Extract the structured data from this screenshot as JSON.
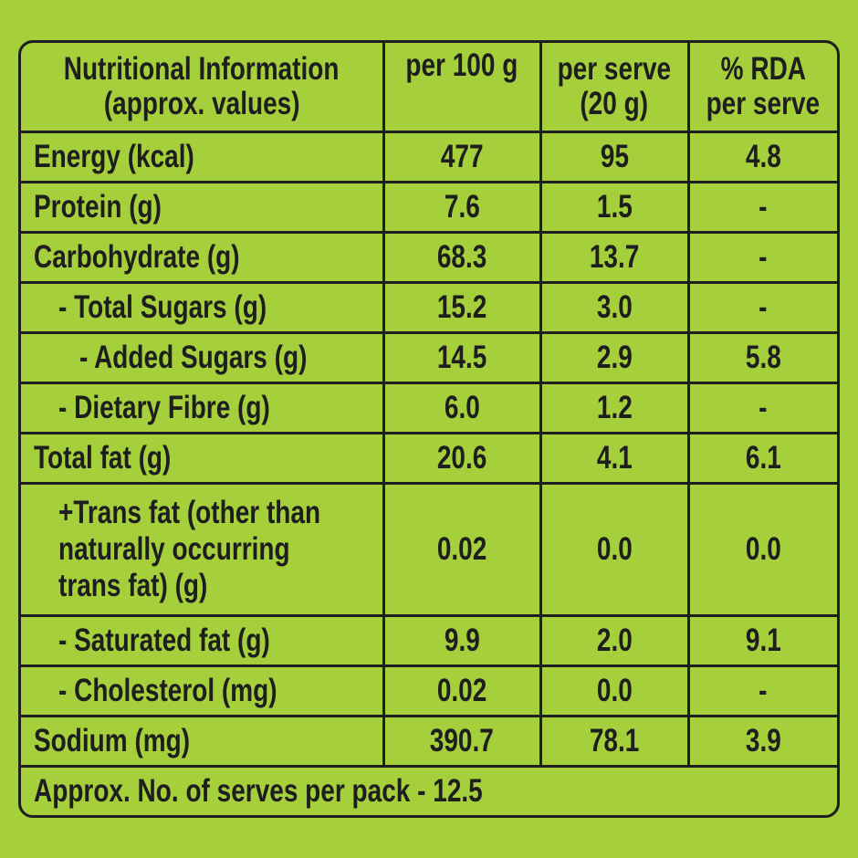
{
  "header": {
    "nutrient_line1": "Nutritional Information",
    "nutrient_line2": "(approx. values)",
    "per100": "per 100 g",
    "perserve_line1": "per serve",
    "perserve_line2": "(20 g)",
    "rda_line1": "% RDA",
    "rda_line2": "per serve"
  },
  "rows": [
    {
      "label": [
        "Energy (kcal)"
      ],
      "indent": 0,
      "per100": "477",
      "perserve": "95",
      "rda": "4.8"
    },
    {
      "label": [
        "Protein (g)"
      ],
      "indent": 0,
      "per100": "7.6",
      "perserve": "1.5",
      "rda": "-"
    },
    {
      "label": [
        "Carbohydrate (g)"
      ],
      "indent": 0,
      "per100": "68.3",
      "perserve": "13.7",
      "rda": "-"
    },
    {
      "label": [
        "- Total Sugars (g)"
      ],
      "indent": 1,
      "per100": "15.2",
      "perserve": "3.0",
      "rda": "-"
    },
    {
      "label": [
        "- Added Sugars (g)"
      ],
      "indent": 2,
      "per100": "14.5",
      "perserve": "2.9",
      "rda": "5.8"
    },
    {
      "label": [
        "- Dietary Fibre (g)"
      ],
      "indent": 1,
      "per100": "6.0",
      "perserve": "1.2",
      "rda": "-"
    },
    {
      "label": [
        "Total fat (g)"
      ],
      "indent": 0,
      "per100": "20.6",
      "perserve": "4.1",
      "rda": "6.1"
    },
    {
      "label": [
        "+Trans fat (other than",
        "naturally occurring",
        "trans fat) (g)"
      ],
      "indent": 1,
      "per100": "0.02",
      "perserve": "0.0",
      "rda": "0.0"
    },
    {
      "label": [
        "- Saturated fat (g)"
      ],
      "indent": 1,
      "per100": "9.9",
      "perserve": "2.0",
      "rda": "9.1"
    },
    {
      "label": [
        "- Cholesterol (mg)"
      ],
      "indent": 1,
      "per100": "0.02",
      "perserve": "0.0",
      "rda": "-"
    },
    {
      "label": [
        "Sodium (mg)"
      ],
      "indent": 0,
      "per100": "390.7",
      "perserve": "78.1",
      "rda": "3.9"
    }
  ],
  "footer": "Approx. No. of serves per pack - 12.5",
  "colors": {
    "background": "#a6cf3c",
    "text": "#1e1e1e"
  }
}
